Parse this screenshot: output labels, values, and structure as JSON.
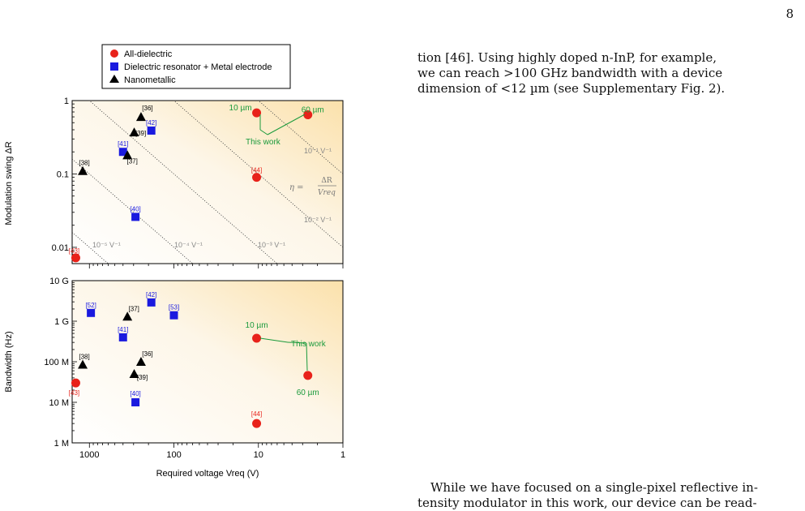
{
  "page_number": "8",
  "body_text": {
    "para1": [
      "tion [46]. Using highly doped n-InP, for example,",
      "we can reach >100 GHz bandwidth with a device",
      "dimension of <12 µm (see Supplementary Fig. 2)."
    ],
    "para2": [
      "While we have focused on a single-pixel reflective in-",
      "tensity modulator in this work, our device can be read-"
    ]
  },
  "colors": {
    "all_dielectric": "#e8221a",
    "dielectric_resonator": "#1a1adf",
    "nanometallic": "#000000",
    "this_work": "#1a9a3c",
    "guide_label": "#888888"
  },
  "chart_data": [
    {
      "type": "scatter",
      "ylabel": "Modulation swing ΔR",
      "xscale": "log-reversed",
      "yscale": "log",
      "xlim": [
        1600,
        1
      ],
      "ylim": [
        0.006,
        1
      ],
      "yticks": [
        {
          "v": 1,
          "label": "1"
        },
        {
          "v": 0.1,
          "label": "0.1"
        },
        {
          "v": 0.01,
          "label": "0.01"
        }
      ],
      "legend": [
        {
          "name": "All-dielectric",
          "marker": "circle"
        },
        {
          "name": "Dielectric resonator + Metal electrode",
          "marker": "square"
        },
        {
          "name": "Nanometallic",
          "marker": "triangle"
        }
      ],
      "series": [
        {
          "name": "All-dielectric",
          "marker": "circle",
          "points": [
            {
              "x": 1450,
              "y": 0.0072,
              "label": "[43]"
            },
            {
              "x": 10.5,
              "y": 0.09,
              "label": "[44]"
            },
            {
              "x": 10.5,
              "y": 0.68,
              "label": "10 µm"
            },
            {
              "x": 2.6,
              "y": 0.64,
              "label": "60 µm"
            }
          ]
        },
        {
          "name": "Dielectric resonator + Metal electrode",
          "marker": "square",
          "points": [
            {
              "x": 185,
              "y": 0.39,
              "label": "[42]"
            },
            {
              "x": 400,
              "y": 0.2,
              "label": "[41]"
            },
            {
              "x": 285,
              "y": 0.026,
              "label": "[40]"
            }
          ]
        },
        {
          "name": "Nanometallic",
          "marker": "triangle",
          "points": [
            {
              "x": 1200,
              "y": 0.11,
              "label": "[38]"
            },
            {
              "x": 245,
              "y": 0.6,
              "label": "[36]"
            },
            {
              "x": 295,
              "y": 0.37,
              "label": "[39]"
            },
            {
              "x": 355,
              "y": 0.18,
              "label": "[37]"
            }
          ]
        }
      ],
      "guide_lines": [
        {
          "slope_label": "10⁻⁵ V⁻¹",
          "eta": 1e-05
        },
        {
          "slope_label": "10⁻⁴ V⁻¹",
          "eta": 0.0001
        },
        {
          "slope_label": "10⁻³ V⁻¹",
          "eta": 0.001
        },
        {
          "slope_label": "10⁻² V⁻¹",
          "eta": 0.01
        },
        {
          "slope_label": "10⁻¹ V⁻¹",
          "eta": 0.1
        }
      ],
      "annotations": {
        "this_work": "This work",
        "eta_lhs": "η =",
        "eta_num": "ΔR",
        "eta_den": "Vreq"
      }
    },
    {
      "type": "scatter",
      "xlabel": "Required voltage Vreq (V)",
      "ylabel": "Bandwidth (Hz)",
      "xscale": "log-reversed",
      "yscale": "log",
      "xlim": [
        1600,
        1
      ],
      "ylim": [
        1000000,
        10000000000
      ],
      "xticks": [
        {
          "v": 1000,
          "label": "1000"
        },
        {
          "v": 100,
          "label": "100"
        },
        {
          "v": 10,
          "label": "10"
        },
        {
          "v": 1,
          "label": "1"
        }
      ],
      "yticks": [
        {
          "v": 10000000000,
          "label": "10 G"
        },
        {
          "v": 1000000000,
          "label": "1 G"
        },
        {
          "v": 100000000,
          "label": "100 M"
        },
        {
          "v": 10000000,
          "label": "10 M"
        },
        {
          "v": 1000000,
          "label": "1 M"
        }
      ],
      "series": [
        {
          "name": "All-dielectric",
          "marker": "circle",
          "points": [
            {
              "x": 1450,
              "y": 30000000,
              "label": "[43]"
            },
            {
              "x": 10.5,
              "y": 3000000,
              "label": "[44]"
            },
            {
              "x": 10.5,
              "y": 380000000,
              "label": "10 µm"
            },
            {
              "x": 2.6,
              "y": 46000000,
              "label": "60 µm"
            }
          ]
        },
        {
          "name": "Dielectric resonator + Metal electrode",
          "marker": "square",
          "points": [
            {
              "x": 960,
              "y": 1600000000,
              "label": "[52]"
            },
            {
              "x": 185,
              "y": 2900000000,
              "label": "[42]"
            },
            {
              "x": 100,
              "y": 1400000000,
              "label": "[53]"
            },
            {
              "x": 400,
              "y": 400000000,
              "label": "[41]"
            },
            {
              "x": 285,
              "y": 10000000,
              "label": "[40]"
            }
          ]
        },
        {
          "name": "Nanometallic",
          "marker": "triangle",
          "points": [
            {
              "x": 1200,
              "y": 85000000,
              "label": "[38]"
            },
            {
              "x": 355,
              "y": 1300000000,
              "label": "[37]"
            },
            {
              "x": 245,
              "y": 100000000,
              "label": "[36]"
            },
            {
              "x": 295,
              "y": 50000000,
              "label": "[39]"
            }
          ]
        }
      ],
      "annotations": {
        "this_work": "This work"
      }
    }
  ]
}
